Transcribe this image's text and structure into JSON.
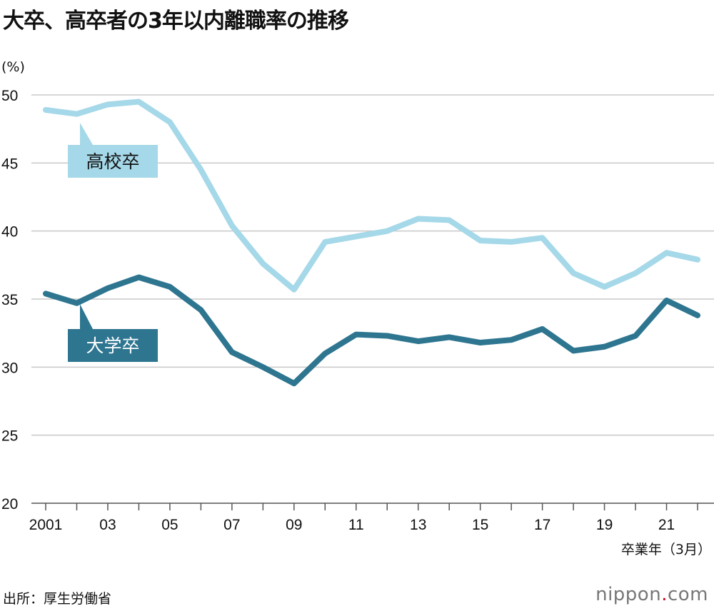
{
  "title": "大卒、高卒者の3年以内離職率の推移",
  "source": "出所：厚生労働省",
  "logo": {
    "pre": "nippon",
    "dot": ".",
    "post": "com"
  },
  "chart_data": {
    "type": "line",
    "title": "大卒、高卒者の3年以内離職率の推移",
    "ylabel": "(%)",
    "xlabel": "卒業年（3月）",
    "ylim": [
      20,
      50
    ],
    "yticks": [
      20,
      25,
      30,
      35,
      40,
      45,
      50
    ],
    "grid": true,
    "x": [
      2001,
      2002,
      2003,
      2004,
      2005,
      2006,
      2007,
      2008,
      2009,
      2010,
      2011,
      2012,
      2013,
      2014,
      2015,
      2016,
      2017,
      2018,
      2019,
      2020,
      2021,
      2022
    ],
    "xtick_labels": [
      {
        "x": 2001,
        "label": "2001"
      },
      {
        "x": 2003,
        "label": "03"
      },
      {
        "x": 2005,
        "label": "05"
      },
      {
        "x": 2007,
        "label": "07"
      },
      {
        "x": 2009,
        "label": "09"
      },
      {
        "x": 2011,
        "label": "11"
      },
      {
        "x": 2013,
        "label": "13"
      },
      {
        "x": 2015,
        "label": "15"
      },
      {
        "x": 2017,
        "label": "17"
      },
      {
        "x": 2019,
        "label": "19"
      },
      {
        "x": 2021,
        "label": "21"
      }
    ],
    "series": [
      {
        "name": "高校卒",
        "color": "#a5d8e8",
        "values": [
          48.9,
          48.6,
          49.3,
          49.5,
          48.0,
          44.5,
          40.4,
          37.6,
          35.7,
          39.2,
          39.6,
          40.0,
          40.9,
          40.8,
          39.3,
          39.2,
          39.5,
          36.9,
          35.9,
          36.9,
          38.4,
          37.9
        ]
      },
      {
        "name": "大学卒",
        "color": "#2e7590",
        "values": [
          35.4,
          34.7,
          35.8,
          36.6,
          35.9,
          34.2,
          31.1,
          30.0,
          28.8,
          31.0,
          32.4,
          32.3,
          31.9,
          32.2,
          31.8,
          32.0,
          32.8,
          31.2,
          31.5,
          32.3,
          34.9,
          33.8
        ]
      }
    ]
  }
}
